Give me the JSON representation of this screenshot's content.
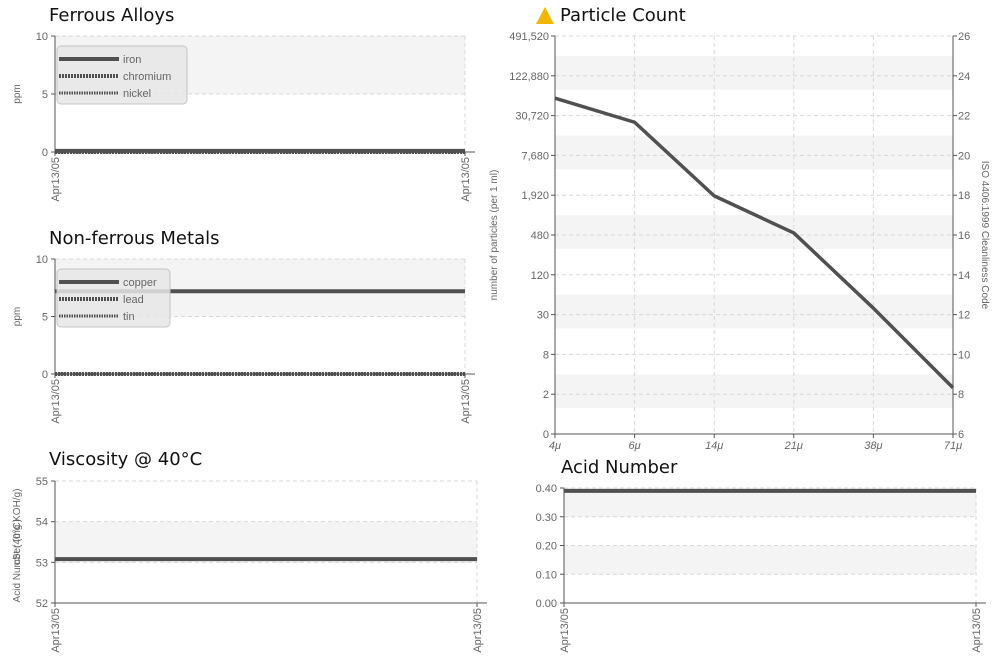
{
  "charts": [
    {
      "id": "ferrous",
      "title": "Ferrous Alloys",
      "ylabel": "ppm",
      "type": "line",
      "yticks": [
        "0",
        "5",
        "10"
      ],
      "ylim": [
        0,
        10
      ],
      "xticks": [
        "Apr13/05",
        "Apr13/05"
      ],
      "legend": [
        "iron",
        "chromium",
        "nickel"
      ],
      "series": [
        {
          "name": "iron",
          "values": [
            0.1,
            0.1
          ]
        },
        {
          "name": "chromium",
          "values": [
            0.0,
            0.0
          ]
        },
        {
          "name": "nickel",
          "values": [
            0.0,
            0.0
          ]
        }
      ]
    },
    {
      "id": "nonferrous",
      "title": "Non-ferrous Metals",
      "ylabel": "ppm",
      "type": "line",
      "yticks": [
        "0",
        "5",
        "10"
      ],
      "ylim": [
        0,
        10
      ],
      "xticks": [
        "Apr13/05",
        "Apr13/05"
      ],
      "legend": [
        "copper",
        "lead",
        "tin"
      ],
      "series": [
        {
          "name": "copper",
          "values": [
            7.2,
            7.2
          ]
        },
        {
          "name": "lead",
          "values": [
            0.0,
            0.0
          ]
        },
        {
          "name": "tin",
          "values": [
            0.0,
            0.0
          ]
        }
      ]
    },
    {
      "id": "viscosity",
      "title": "Viscosity @ 40°C",
      "ylabel": "cSt (40°C)",
      "type": "line",
      "yticks": [
        "52",
        "53",
        "54",
        "55"
      ],
      "ylim": [
        52,
        55
      ],
      "xticks": [
        "Apr13/05",
        "Apr13/05"
      ],
      "series": [
        {
          "values": [
            53.08,
            53.08
          ]
        }
      ]
    },
    {
      "id": "particle",
      "title": "Particle Count",
      "ylabel": "number of particles (per 1 ml)",
      "y2label": "ISO 4406:1999 Cleanliness Code",
      "type": "line",
      "scale": "log2",
      "yticks": [
        "0",
        "2",
        "8",
        "30",
        "120",
        "480",
        "1,920",
        "7,680",
        "30,720",
        "122,880",
        "491,520"
      ],
      "y2ticks": [
        "6",
        "8",
        "10",
        "12",
        "14",
        "16",
        "18",
        "20",
        "22",
        "24",
        "26"
      ],
      "xticks": [
        "4μ",
        "6μ",
        "14μ",
        "21μ",
        "38μ",
        "71μ"
      ],
      "series": [
        {
          "values": [
            60000,
            26000,
            2000,
            550,
            40,
            2.5
          ]
        }
      ]
    },
    {
      "id": "acid",
      "title": "Acid Number",
      "ylabel": "Acid Number (mg KOH/g)",
      "type": "line",
      "yticks": [
        "0.00",
        "0.10",
        "0.20",
        "0.30",
        "0.40"
      ],
      "ylim": [
        0,
        0.4
      ],
      "xticks": [
        "Apr13/05",
        "Apr13/05"
      ],
      "series": [
        {
          "values": [
            0.39,
            0.39
          ]
        }
      ]
    }
  ],
  "colors": {
    "line": "#505050",
    "band": "#f4f4f4",
    "grid": "#d8d8d8",
    "axis": "#555555",
    "warning": "#f2b705"
  },
  "icons": {
    "particle_warning": "warning-triangle-icon"
  }
}
